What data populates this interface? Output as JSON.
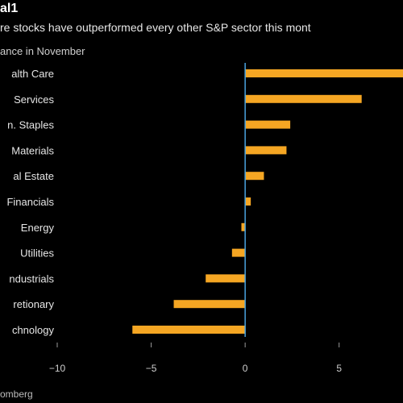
{
  "chart_data": {
    "type": "bar",
    "orientation": "horizontal",
    "title": "al1",
    "subtitle": "re stocks have outperformed every other S&P sector this mont",
    "ylabel": "ance in November",
    "source": "omberg",
    "categories": [
      "alth Care",
      "Services",
      "n. Staples",
      "Materials",
      "al Estate",
      "Financials",
      "Energy",
      "Utilities",
      "ndustrials",
      "retionary",
      "chnology"
    ],
    "values": [
      8.6,
      6.2,
      2.4,
      2.2,
      1.0,
      0.3,
      -0.2,
      -0.7,
      -2.1,
      -3.8,
      -6.0
    ],
    "xticks": [
      -10,
      -5,
      0,
      5
    ],
    "xlim": [
      -10,
      8.4
    ],
    "grid": false,
    "bar_color": "#f5a623",
    "zero_line_color": "#4aa3df"
  }
}
